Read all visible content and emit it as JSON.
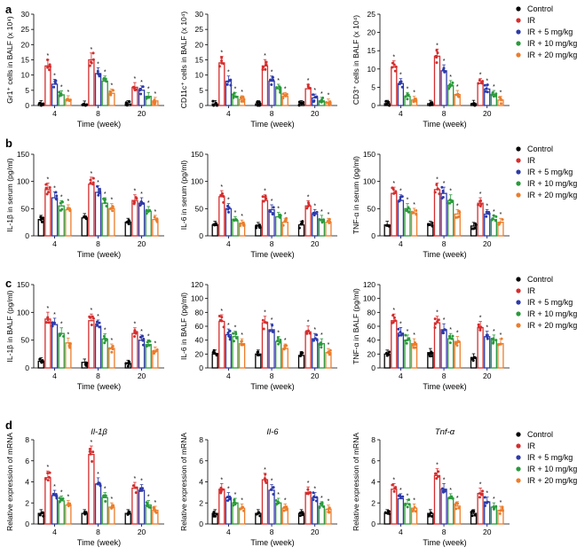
{
  "legend": {
    "entries": [
      {
        "label": "Control",
        "color": "#000000"
      },
      {
        "label": "IR",
        "color": "#d62d2d"
      },
      {
        "label": "IR + 5 mg/kg",
        "color": "#2e3aa8"
      },
      {
        "label": "IR + 10 mg/kg",
        "color": "#2a9a3c"
      },
      {
        "label": "IR + 20 mg/kg",
        "color": "#ec7d2b"
      }
    ]
  },
  "rows": [
    {
      "letter": "a"
    },
    {
      "letter": "b"
    },
    {
      "letter": "c"
    },
    {
      "letter": "d"
    }
  ],
  "chart_data": [
    {
      "type": "bar",
      "title": "",
      "xlabel": "Time (week)",
      "ylabel": "Gr1⁺ cells in BALF (x 10⁴)",
      "categories": [
        "4",
        "8",
        "20"
      ],
      "ylim": [
        0,
        30
      ],
      "yticks": [
        0,
        5,
        10,
        15,
        20,
        25,
        30
      ],
      "series": [
        {
          "name": "Control",
          "values": [
            0.5,
            0.4,
            0.5
          ]
        },
        {
          "name": "IR",
          "values": [
            13,
            15,
            6
          ]
        },
        {
          "name": "IR + 5 mg/kg",
          "values": [
            7,
            10.5,
            5
          ]
        },
        {
          "name": "IR + 10 mg/kg",
          "values": [
            3.5,
            8,
            3
          ]
        },
        {
          "name": "IR + 20 mg/kg",
          "values": [
            2,
            4,
            1.5
          ]
        }
      ]
    },
    {
      "type": "bar",
      "title": "",
      "xlabel": "Time (week)",
      "ylabel": "CD11c⁺ cells in BALF (x 10⁴)",
      "categories": [
        "4",
        "8",
        "20"
      ],
      "ylim": [
        0,
        30
      ],
      "yticks": [
        0,
        5,
        10,
        15,
        20,
        25,
        30
      ],
      "series": [
        {
          "name": "Control",
          "values": [
            0.5,
            0.5,
            0.5
          ]
        },
        {
          "name": "IR",
          "values": [
            14,
            13,
            5.5
          ]
        },
        {
          "name": "IR + 5 mg/kg",
          "values": [
            8,
            8,
            2.5
          ]
        },
        {
          "name": "IR + 10 mg/kg",
          "values": [
            3,
            5.5,
            1.5
          ]
        },
        {
          "name": "IR + 20 mg/kg",
          "values": [
            2,
            3,
            1
          ]
        }
      ]
    },
    {
      "type": "bar",
      "title": "",
      "xlabel": "Time (week)",
      "ylabel": "CD3⁺ cells in BALF (x 10⁴)",
      "categories": [
        "4",
        "8",
        "20"
      ],
      "ylim": [
        0,
        25
      ],
      "yticks": [
        0,
        5,
        10,
        15,
        20,
        25
      ],
      "series": [
        {
          "name": "Control",
          "values": [
            0.5,
            0.5,
            0.5
          ]
        },
        {
          "name": "IR",
          "values": [
            10.5,
            13.5,
            6
          ]
        },
        {
          "name": "IR + 5 mg/kg",
          "values": [
            6,
            9.5,
            4.5
          ]
        },
        {
          "name": "IR + 10 mg/kg",
          "values": [
            2.5,
            5.5,
            3
          ]
        },
        {
          "name": "IR + 20 mg/kg",
          "values": [
            1.5,
            3,
            1.5
          ]
        }
      ]
    },
    {
      "type": "bar",
      "title": "",
      "xlabel": "Time (week)",
      "ylabel": "IL-1β in serum (pg/ml)",
      "categories": [
        "4",
        "8",
        "20"
      ],
      "ylim": [
        0,
        150
      ],
      "yticks": [
        0,
        50,
        100,
        150
      ],
      "series": [
        {
          "name": "Control",
          "values": [
            30,
            33,
            25
          ]
        },
        {
          "name": "IR",
          "values": [
            85,
            95,
            65
          ]
        },
        {
          "name": "IR + 5 mg/kg",
          "values": [
            70,
            80,
            60
          ]
        },
        {
          "name": "IR + 10 mg/kg",
          "values": [
            55,
            60,
            45
          ]
        },
        {
          "name": "IR + 20 mg/kg",
          "values": [
            48,
            50,
            30
          ]
        }
      ]
    },
    {
      "type": "bar",
      "title": "",
      "xlabel": "Time (week)",
      "ylabel": "IL-6 in serum (pg/ml)",
      "categories": [
        "4",
        "8",
        "20"
      ],
      "ylim": [
        0,
        150
      ],
      "yticks": [
        0,
        50,
        100,
        150
      ],
      "series": [
        {
          "name": "Control",
          "values": [
            20,
            18,
            20
          ]
        },
        {
          "name": "IR",
          "values": [
            72,
            65,
            55
          ]
        },
        {
          "name": "IR + 5 mg/kg",
          "values": [
            50,
            48,
            40
          ]
        },
        {
          "name": "IR + 10 mg/kg",
          "values": [
            28,
            35,
            30
          ]
        },
        {
          "name": "IR + 20 mg/kg",
          "values": [
            22,
            25,
            25
          ]
        }
      ]
    },
    {
      "type": "bar",
      "title": "",
      "xlabel": "Time (week)",
      "ylabel": "TNF-α in serum (pg/ml)",
      "categories": [
        "4",
        "8",
        "20"
      ],
      "ylim": [
        0,
        150
      ],
      "yticks": [
        0,
        50,
        100,
        150
      ],
      "series": [
        {
          "name": "Control",
          "values": [
            20,
            20,
            18
          ]
        },
        {
          "name": "IR",
          "values": [
            78,
            85,
            60
          ]
        },
        {
          "name": "IR + 5 mg/kg",
          "values": [
            65,
            78,
            40
          ]
        },
        {
          "name": "IR + 10 mg/kg",
          "values": [
            50,
            65,
            30
          ]
        },
        {
          "name": "IR + 20 mg/kg",
          "values": [
            42,
            40,
            25
          ]
        }
      ]
    },
    {
      "type": "bar",
      "title": "",
      "xlabel": "Time (week)",
      "ylabel": "IL-1β in BALF (pg/ml)",
      "categories": [
        "4",
        "8",
        "20"
      ],
      "ylim": [
        0,
        150
      ],
      "yticks": [
        0,
        50,
        100,
        150
      ],
      "series": [
        {
          "name": "Control",
          "values": [
            12,
            10,
            8
          ]
        },
        {
          "name": "IR",
          "values": [
            88,
            85,
            62
          ]
        },
        {
          "name": "IR + 5 mg/kg",
          "values": [
            78,
            75,
            50
          ]
        },
        {
          "name": "IR + 10 mg/kg",
          "values": [
            62,
            52,
            42
          ]
        },
        {
          "name": "IR + 20 mg/kg",
          "values": [
            45,
            35,
            30
          ]
        }
      ]
    },
    {
      "type": "bar",
      "title": "",
      "xlabel": "Time (week)",
      "ylabel": "IL-6 in BALF (pg/ml)",
      "categories": [
        "4",
        "8",
        "20"
      ],
      "ylim": [
        0,
        120
      ],
      "yticks": [
        0,
        20,
        40,
        60,
        80,
        100,
        120
      ],
      "series": [
        {
          "name": "Control",
          "values": [
            20,
            20,
            18
          ]
        },
        {
          "name": "IR",
          "values": [
            67,
            65,
            52
          ]
        },
        {
          "name": "IR + 5 mg/kg",
          "values": [
            48,
            55,
            42
          ]
        },
        {
          "name": "IR + 10 mg/kg",
          "values": [
            45,
            38,
            35
          ]
        },
        {
          "name": "IR + 20 mg/kg",
          "values": [
            35,
            28,
            22
          ]
        }
      ]
    },
    {
      "type": "bar",
      "title": "",
      "xlabel": "Time (week)",
      "ylabel": "TNF-α in BALF (pg/ml)",
      "categories": [
        "4",
        "8",
        "20"
      ],
      "ylim": [
        0,
        120
      ],
      "yticks": [
        0,
        20,
        40,
        60,
        80,
        100,
        120
      ],
      "series": [
        {
          "name": "Control",
          "values": [
            20,
            22,
            15
          ]
        },
        {
          "name": "IR",
          "values": [
            68,
            65,
            58
          ]
        },
        {
          "name": "IR + 5 mg/kg",
          "values": [
            50,
            55,
            45
          ]
        },
        {
          "name": "IR + 10 mg/kg",
          "values": [
            40,
            42,
            40
          ]
        },
        {
          "name": "IR + 20 mg/kg",
          "values": [
            35,
            38,
            35
          ]
        }
      ]
    },
    {
      "type": "bar",
      "title": "Il-1β",
      "xlabel": "Time (week)",
      "ylabel": "Relative expression of mRNA",
      "categories": [
        "4",
        "8",
        "20"
      ],
      "ylim": [
        0,
        8
      ],
      "yticks": [
        0,
        2,
        4,
        6,
        8
      ],
      "series": [
        {
          "name": "Control",
          "values": [
            1,
            1,
            1
          ]
        },
        {
          "name": "IR",
          "values": [
            4.4,
            6.6,
            3.4
          ]
        },
        {
          "name": "IR + 5 mg/kg",
          "values": [
            2.7,
            3.8,
            3.2
          ]
        },
        {
          "name": "IR + 10 mg/kg",
          "values": [
            2.2,
            2.5,
            1.8
          ]
        },
        {
          "name": "IR + 20 mg/kg",
          "values": [
            1.8,
            1.6,
            1.3
          ]
        }
      ]
    },
    {
      "type": "bar",
      "title": "Il-6",
      "xlabel": "Time (week)",
      "ylabel": "Relative expression of mRNA",
      "categories": [
        "4",
        "8",
        "20"
      ],
      "ylim": [
        0,
        8
      ],
      "yticks": [
        0,
        2,
        4,
        6,
        8
      ],
      "series": [
        {
          "name": "Control",
          "values": [
            1,
            1,
            1
          ]
        },
        {
          "name": "IR",
          "values": [
            3.3,
            4.2,
            3.0
          ]
        },
        {
          "name": "IR + 5 mg/kg",
          "values": [
            2.5,
            3.2,
            2.5
          ]
        },
        {
          "name": "IR + 10 mg/kg",
          "values": [
            2.0,
            2.0,
            1.7
          ]
        },
        {
          "name": "IR + 20 mg/kg",
          "values": [
            1.5,
            1.5,
            1.4
          ]
        }
      ]
    },
    {
      "type": "bar",
      "title": "Tnf-α",
      "xlabel": "Time (week)",
      "ylabel": "Relative expression of mRNA",
      "categories": [
        "4",
        "8",
        "20"
      ],
      "ylim": [
        0,
        8
      ],
      "yticks": [
        0,
        2,
        4,
        6,
        8
      ],
      "series": [
        {
          "name": "Control",
          "values": [
            1,
            1,
            1
          ]
        },
        {
          "name": "IR",
          "values": [
            3.3,
            4.6,
            2.9
          ]
        },
        {
          "name": "IR + 5 mg/kg",
          "values": [
            2.4,
            3.3,
            2.1
          ]
        },
        {
          "name": "IR + 10 mg/kg",
          "values": [
            1.9,
            2.4,
            1.6
          ]
        },
        {
          "name": "IR + 20 mg/kg",
          "values": [
            1.5,
            1.7,
            1.3
          ]
        }
      ]
    }
  ]
}
